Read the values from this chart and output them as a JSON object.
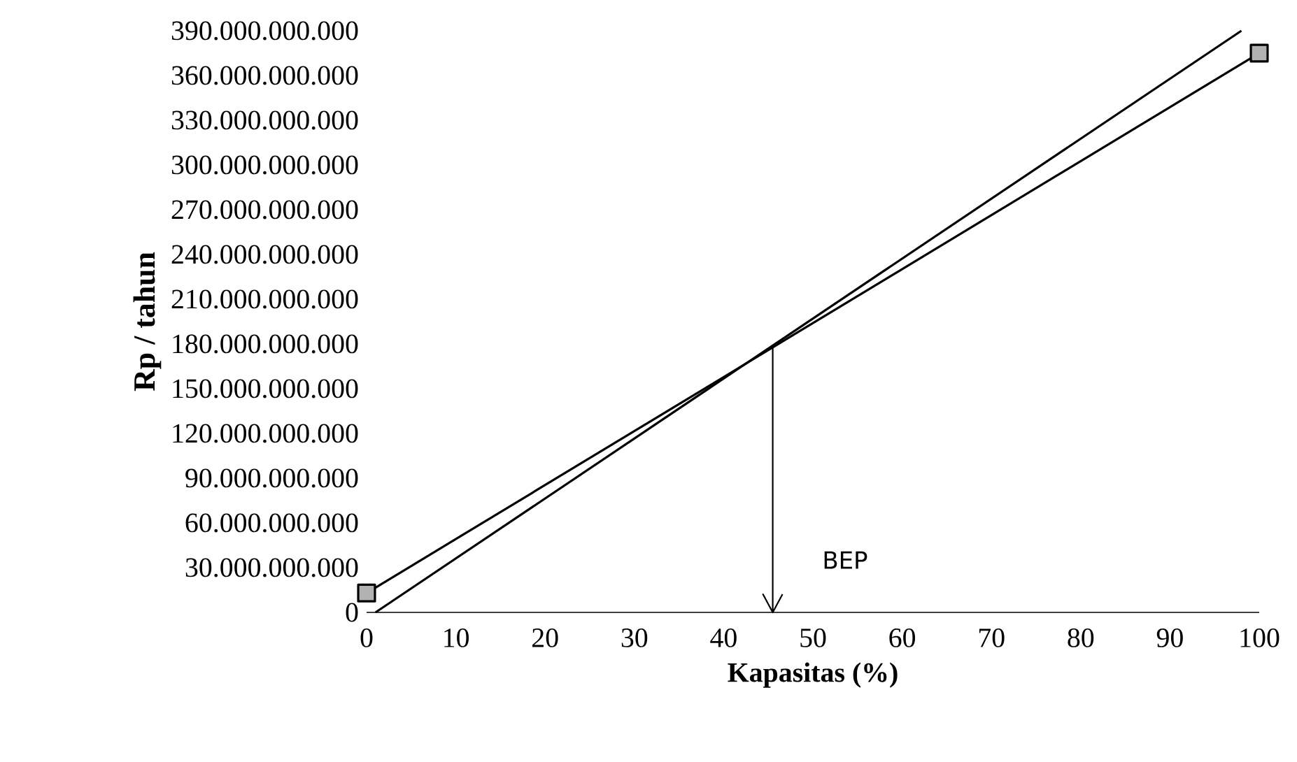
{
  "chart_data": {
    "type": "line",
    "xlabel": "Kapasitas (%)",
    "ylabel": "Rp / tahun",
    "xlim": [
      0,
      100
    ],
    "ylim": [
      0,
      390000000000
    ],
    "xticks": [
      0,
      10,
      20,
      30,
      40,
      50,
      60,
      70,
      80,
      90,
      100
    ],
    "yticks": [
      0,
      {
        "value": 30000000000,
        "label": "30.000.000.000"
      },
      {
        "value": 60000000000,
        "label": "60.000.000.000"
      },
      {
        "value": 90000000000,
        "label": "90.000.000.000"
      },
      {
        "value": 120000000000,
        "label": "120.000.000.000"
      },
      {
        "value": 150000000000,
        "label": "150.000.000.000"
      },
      {
        "value": 180000000000,
        "label": "180.000.000.000"
      },
      {
        "value": 210000000000,
        "label": "210.000.000.000"
      },
      {
        "value": 240000000000,
        "label": "240.000.000.000"
      },
      {
        "value": 270000000000,
        "label": "270.000.000.000"
      },
      {
        "value": 300000000000,
        "label": "300.000.000.000"
      },
      {
        "value": 330000000000,
        "label": "330.000.000.000"
      },
      {
        "value": 360000000000,
        "label": "360.000.000.000"
      },
      {
        "value": 390000000000,
        "label": "390.000.000.000"
      }
    ],
    "series": [
      {
        "color": "#000000",
        "marker": "square",
        "x": [
          0,
          100
        ],
        "values": [
          13000000000,
          375000000000
        ]
      },
      {
        "color": "#000000",
        "marker": "none",
        "x": [
          1,
          98
        ],
        "values": [
          0,
          390000000000
        ]
      }
    ],
    "ref_lines": [
      {
        "axis": "x",
        "value": 45.5,
        "label": "BEP"
      }
    ],
    "grid": false
  }
}
